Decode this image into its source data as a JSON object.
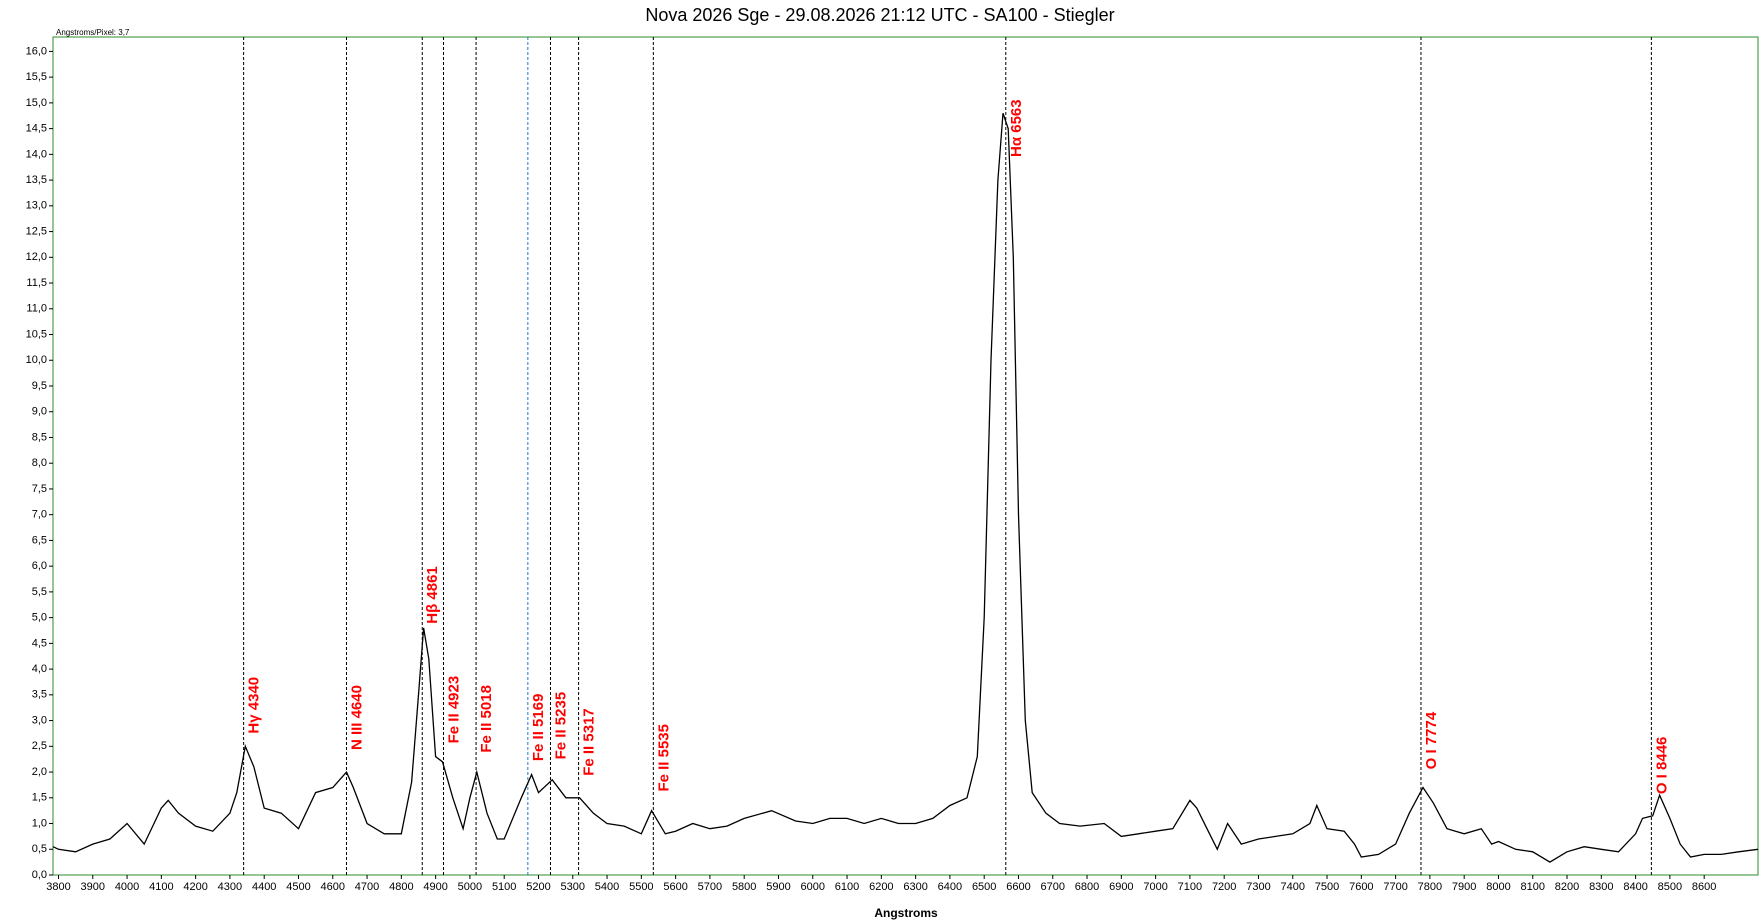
{
  "chart_data": {
    "type": "line",
    "title": "Nova 2026 Sge - 29.08.2026 21:12 UTC - SA100 - Stiegler",
    "subtitle": "Angstroms/Pixel: 3,7",
    "x_label": "Angstroms",
    "color": "#000000",
    "x": [
      3784,
      3800,
      3850,
      3900,
      3950,
      4000,
      4050,
      4100,
      4120,
      4150,
      4200,
      4250,
      4300,
      4320,
      4345,
      4370,
      4400,
      4450,
      4500,
      4550,
      4600,
      4640,
      4660,
      4700,
      4750,
      4800,
      4830,
      4850,
      4865,
      4880,
      4900,
      4920,
      4950,
      4980,
      5000,
      5020,
      5050,
      5080,
      5100,
      5150,
      5180,
      5200,
      5240,
      5280,
      5320,
      5360,
      5400,
      5450,
      5500,
      5530,
      5570,
      5600,
      5650,
      5700,
      5750,
      5800,
      5880,
      5950,
      6000,
      6050,
      6100,
      6150,
      6200,
      6250,
      6300,
      6350,
      6400,
      6450,
      6480,
      6500,
      6520,
      6540,
      6555,
      6570,
      6585,
      6600,
      6620,
      6640,
      6680,
      6720,
      6780,
      6850,
      6900,
      6950,
      7000,
      7050,
      7100,
      7120,
      7150,
      7180,
      7210,
      7250,
      7300,
      7350,
      7400,
      7450,
      7470,
      7500,
      7550,
      7580,
      7600,
      7650,
      7700,
      7740,
      7780,
      7810,
      7850,
      7900,
      7950,
      7980,
      8000,
      8050,
      8100,
      8150,
      8200,
      8250,
      8300,
      8350,
      8400,
      8420,
      8450,
      8470,
      8500,
      8530,
      8560,
      8600,
      8650,
      8700,
      8757
    ],
    "values": [
      0.55,
      0.5,
      0.45,
      0.6,
      0.7,
      1.0,
      0.6,
      1.3,
      1.45,
      1.2,
      0.95,
      0.85,
      1.2,
      1.6,
      2.5,
      2.1,
      1.3,
      1.2,
      0.9,
      1.6,
      1.7,
      2.0,
      1.7,
      1.0,
      0.8,
      0.8,
      1.8,
      3.5,
      4.8,
      4.2,
      2.3,
      2.2,
      1.5,
      0.9,
      1.5,
      2.0,
      1.2,
      0.7,
      0.7,
      1.5,
      1.95,
      1.6,
      1.85,
      1.5,
      1.5,
      1.2,
      1.0,
      0.95,
      0.8,
      1.25,
      0.8,
      0.85,
      1.0,
      0.9,
      0.95,
      1.1,
      1.25,
      1.05,
      1.0,
      1.1,
      1.1,
      1.0,
      1.1,
      1.0,
      1.0,
      1.1,
      1.35,
      1.5,
      2.3,
      5.0,
      10.0,
      13.5,
      14.8,
      14.5,
      12.0,
      7.0,
      3.0,
      1.6,
      1.2,
      1.0,
      0.95,
      1.0,
      0.75,
      0.8,
      0.85,
      0.9,
      1.45,
      1.3,
      0.9,
      0.5,
      1.0,
      0.6,
      0.7,
      0.75,
      0.8,
      1.0,
      1.35,
      0.9,
      0.85,
      0.6,
      0.35,
      0.4,
      0.6,
      1.2,
      1.7,
      1.4,
      0.9,
      0.8,
      0.9,
      0.6,
      0.65,
      0.5,
      0.45,
      0.25,
      0.45,
      0.55,
      0.5,
      0.45,
      0.8,
      1.1,
      1.15,
      1.55,
      1.1,
      0.6,
      0.35,
      0.4,
      0.4,
      0.45,
      0.5
    ],
    "xlim": [
      3784,
      8757
    ],
    "xticks": [
      3800,
      3900,
      4000,
      4100,
      4200,
      4300,
      4400,
      4500,
      4600,
      4700,
      4800,
      4900,
      5000,
      5100,
      5200,
      5300,
      5400,
      5500,
      5600,
      5700,
      5800,
      5900,
      6000,
      6100,
      6200,
      6300,
      6400,
      6500,
      6600,
      6700,
      6800,
      6900,
      7000,
      7100,
      7200,
      7300,
      7400,
      7500,
      7600,
      7700,
      7800,
      7900,
      8000,
      8100,
      8200,
      8300,
      8400,
      8500,
      8600
    ],
    "ylim": [
      0,
      16.28
    ],
    "yticks": [
      {
        "value": 0,
        "label": "0,0"
      },
      {
        "value": 0.5,
        "label": "0,5"
      },
      {
        "value": 1,
        "label": "1,0"
      },
      {
        "value": 1.5,
        "label": "1,5"
      },
      {
        "value": 2,
        "label": "2,0"
      },
      {
        "value": 2.5,
        "label": "2,5"
      },
      {
        "value": 3,
        "label": "3,0"
      },
      {
        "value": 3.5,
        "label": "3,5"
      },
      {
        "value": 4,
        "label": "4,0"
      },
      {
        "value": 4.5,
        "label": "4,5"
      },
      {
        "value": 5,
        "label": "5,0"
      },
      {
        "value": 5.5,
        "label": "5,5"
      },
      {
        "value": 6,
        "label": "6,0"
      },
      {
        "value": 6.5,
        "label": "6,5"
      },
      {
        "value": 7,
        "label": "7,0"
      },
      {
        "value": 7.5,
        "label": "7,5"
      },
      {
        "value": 8,
        "label": "8,0"
      },
      {
        "value": 8.5,
        "label": "8,5"
      },
      {
        "value": 9,
        "label": "9,0"
      },
      {
        "value": 9.5,
        "label": "9,5"
      },
      {
        "value": 10,
        "label": "10,0"
      },
      {
        "value": 10.5,
        "label": "10,5"
      },
      {
        "value": 11,
        "label": "11,0"
      },
      {
        "value": 11.5,
        "label": "11,5"
      },
      {
        "value": 12,
        "label": "12,0"
      },
      {
        "value": 12.5,
        "label": "12,5"
      },
      {
        "value": 13,
        "label": "13,0"
      },
      {
        "value": 13.5,
        "label": "13,5"
      },
      {
        "value": 14,
        "label": "14,0"
      },
      {
        "value": 14.5,
        "label": "14,5"
      },
      {
        "value": 15,
        "label": "15,0"
      },
      {
        "value": 15.5,
        "label": "15,5"
      },
      {
        "value": 16,
        "label": "16,0"
      }
    ],
    "annotations": [
      {
        "x": 4340,
        "label": "Hγ  4340",
        "line_color": "#000000"
      },
      {
        "x": 4640,
        "label": "N III 4640",
        "line_color": "#000000"
      },
      {
        "x": 4861,
        "label": "Hβ  4861",
        "line_color": "#000000"
      },
      {
        "x": 4923,
        "label": "Fe II 4923",
        "line_color": "#000000"
      },
      {
        "x": 5018,
        "label": "Fe II 5018",
        "line_color": "#000000"
      },
      {
        "x": 5169,
        "label": "Fe II 5169",
        "line_color": "#1f77d4"
      },
      {
        "x": 5235,
        "label": "Fe II 5235",
        "line_color": "#000000"
      },
      {
        "x": 5317,
        "label": "Fe II 5317",
        "line_color": "#000000"
      },
      {
        "x": 5535,
        "label": "Fe II 5535",
        "line_color": "#000000"
      },
      {
        "x": 6563,
        "label": "Hα  6563",
        "line_color": "#000000"
      },
      {
        "x": 7774,
        "label": "O I 7774",
        "line_color": "#000000"
      },
      {
        "x": 8446,
        "label": "O I 8446",
        "line_color": "#000000"
      }
    ],
    "label_color": "#ff0000"
  }
}
